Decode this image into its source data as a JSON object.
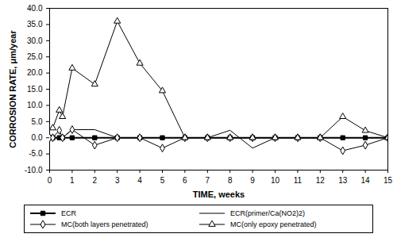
{
  "chart_data": {
    "type": "line",
    "x_label": "TIME, weeks",
    "y_label": "CORROSION RATE, μm/year",
    "x": [
      0,
      0.14,
      0.43,
      0.57,
      1,
      2,
      3,
      4,
      5,
      6,
      7,
      8,
      9,
      10,
      11,
      12,
      13,
      14,
      15
    ],
    "series": [
      {
        "name": "ECR",
        "color": "#000000",
        "marker": "square",
        "line_style": "solid",
        "values": [
          0,
          0,
          0,
          0,
          0,
          0,
          0,
          0,
          0,
          0,
          0,
          0,
          0,
          0,
          0,
          0,
          0,
          0,
          0
        ]
      },
      {
        "name": "ECR(primer/Ca(NO2)2)",
        "color": "#000000",
        "marker": "none",
        "line_style": "solid",
        "values": [
          0,
          0,
          0,
          0,
          2.5,
          2.5,
          0,
          0,
          0,
          0,
          0,
          2.3,
          -3.2,
          0,
          0,
          0,
          0,
          0,
          0
        ]
      },
      {
        "name": "MC(both layers penetrated)",
        "color": "#000000",
        "marker": "diamond",
        "line_style": "solid",
        "values": [
          0,
          0,
          2.3,
          0,
          2.5,
          -2.3,
          0,
          0,
          -3.2,
          0,
          0,
          0,
          0,
          0,
          0,
          0,
          -4.0,
          -2.3,
          0
        ]
      },
      {
        "name": "MC(only epoxy penetrated)",
        "color": "#000000",
        "marker": "triangle",
        "line_style": "solid",
        "values": [
          null,
          3.0,
          8.5,
          6.5,
          21.5,
          16.5,
          36.0,
          23.0,
          14.5,
          0,
          0,
          0,
          0,
          0,
          0,
          0,
          6.5,
          2.2,
          0
        ]
      }
    ],
    "xlim": [
      0,
      15
    ],
    "xticks": [
      0,
      1,
      2,
      3,
      4,
      5,
      6,
      7,
      8,
      9,
      10,
      11,
      12,
      13,
      14,
      15
    ],
    "ylim": [
      -10,
      40
    ],
    "yticks": [
      {
        "value": -10,
        "label": "-10.0"
      },
      {
        "value": -5,
        "label": "-5.0"
      },
      {
        "value": 0,
        "label": "0.0"
      },
      {
        "value": 5,
        "label": "5.0"
      },
      {
        "value": 10,
        "label": "10.0"
      },
      {
        "value": 15,
        "label": "15.0"
      },
      {
        "value": 20,
        "label": "20.0"
      },
      {
        "value": 25,
        "label": "25.0"
      },
      {
        "value": 30,
        "label": "30.0"
      },
      {
        "value": 35,
        "label": "35.0"
      },
      {
        "value": 40,
        "label": "40.0"
      }
    ],
    "grid": false,
    "legend": "bottom"
  }
}
